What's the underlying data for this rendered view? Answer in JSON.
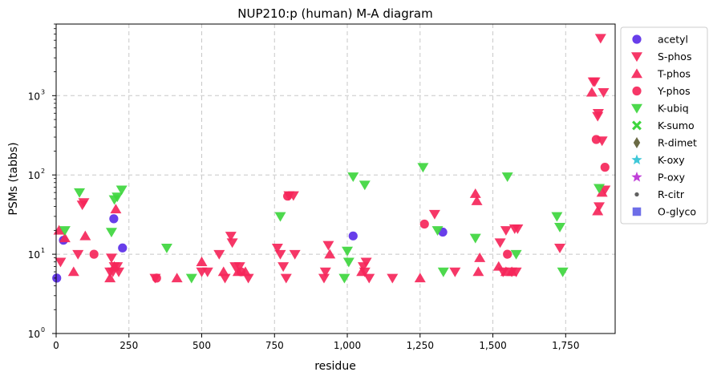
{
  "chart_data": {
    "type": "scatter",
    "title": "NUP210:p (human) M-A diagram",
    "xlabel": "residue",
    "ylabel": "PSMs (tabbs)",
    "xlim": [
      0,
      1920
    ],
    "ylim": [
      1,
      8000
    ],
    "yscale": "log",
    "grid": true,
    "legend_position": "outside-right",
    "x_ticks": [
      {
        "value": 0,
        "label": "0"
      },
      {
        "value": 250,
        "label": "250"
      },
      {
        "value": 500,
        "label": "500"
      },
      {
        "value": 750,
        "label": "750"
      },
      {
        "value": 1000,
        "label": "1,000"
      },
      {
        "value": 1250,
        "label": "1,250"
      },
      {
        "value": 1500,
        "label": "1,500"
      },
      {
        "value": 1750,
        "label": "1,750"
      }
    ],
    "y_ticks": [
      {
        "value": 1,
        "label": "10",
        "exp": "0"
      },
      {
        "value": 10,
        "label": "10",
        "exp": "1"
      },
      {
        "value": 100,
        "label": "10",
        "exp": "2"
      },
      {
        "value": 1000,
        "label": "10",
        "exp": "3"
      }
    ],
    "series": [
      {
        "name": "acetyl",
        "marker": "circle",
        "color": "#5b2ee8",
        "points": [
          [
            2,
            5
          ],
          [
            25,
            15
          ],
          [
            198,
            28
          ],
          [
            228,
            12
          ],
          [
            1020,
            17
          ],
          [
            1328,
            19
          ]
        ]
      },
      {
        "name": "S-phos",
        "marker": "triangle-down",
        "color": "#f5265a",
        "points": [
          [
            15,
            8
          ],
          [
            75,
            10
          ],
          [
            90,
            42
          ],
          [
            95,
            45
          ],
          [
            185,
            6
          ],
          [
            190,
            9
          ],
          [
            195,
            6
          ],
          [
            200,
            7
          ],
          [
            210,
            7
          ],
          [
            215,
            6
          ],
          [
            340,
            5
          ],
          [
            500,
            6
          ],
          [
            520,
            6
          ],
          [
            560,
            10
          ],
          [
            580,
            5
          ],
          [
            600,
            17
          ],
          [
            605,
            14
          ],
          [
            615,
            7
          ],
          [
            630,
            7
          ],
          [
            660,
            5
          ],
          [
            760,
            12
          ],
          [
            770,
            10
          ],
          [
            780,
            7
          ],
          [
            790,
            5
          ],
          [
            800,
            55
          ],
          [
            815,
            55
          ],
          [
            820,
            10
          ],
          [
            920,
            5
          ],
          [
            925,
            6
          ],
          [
            935,
            13
          ],
          [
            1055,
            7
          ],
          [
            1060,
            6
          ],
          [
            1065,
            8
          ],
          [
            1075,
            5
          ],
          [
            1155,
            5
          ],
          [
            1300,
            32
          ],
          [
            1370,
            6
          ],
          [
            1525,
            14
          ],
          [
            1535,
            6
          ],
          [
            1545,
            20
          ],
          [
            1565,
            6
          ],
          [
            1575,
            21
          ],
          [
            1580,
            6
          ],
          [
            1585,
            21
          ],
          [
            1730,
            12
          ],
          [
            1845,
            1500
          ],
          [
            1850,
            1500
          ],
          [
            1860,
            550
          ],
          [
            1862,
            600
          ],
          [
            1865,
            40
          ],
          [
            1870,
            5300
          ],
          [
            1875,
            270
          ],
          [
            1880,
            1100
          ],
          [
            1885,
            65
          ]
        ]
      },
      {
        "name": "T-phos",
        "marker": "triangle-up",
        "color": "#f5265a",
        "points": [
          [
            10,
            20
          ],
          [
            30,
            16
          ],
          [
            60,
            6
          ],
          [
            100,
            17
          ],
          [
            185,
            5
          ],
          [
            200,
            7
          ],
          [
            205,
            37
          ],
          [
            415,
            5
          ],
          [
            500,
            8
          ],
          [
            575,
            6
          ],
          [
            625,
            6
          ],
          [
            650,
            6
          ],
          [
            940,
            10
          ],
          [
            1050,
            6
          ],
          [
            1250,
            5
          ],
          [
            1440,
            58
          ],
          [
            1445,
            47
          ],
          [
            1450,
            6
          ],
          [
            1455,
            9
          ],
          [
            1520,
            7
          ],
          [
            1545,
            6
          ],
          [
            1565,
            6
          ],
          [
            1840,
            1100
          ],
          [
            1860,
            35
          ],
          [
            1875,
            60
          ]
        ]
      },
      {
        "name": "Y-phos",
        "marker": "circle",
        "color": "#f5265a",
        "points": [
          [
            130,
            10
          ],
          [
            345,
            5
          ],
          [
            635,
            6
          ],
          [
            795,
            54
          ],
          [
            1265,
            24
          ],
          [
            1550,
            10
          ],
          [
            1855,
            280
          ],
          [
            1885,
            125
          ]
        ]
      },
      {
        "name": "K-ubiq",
        "marker": "triangle-down",
        "color": "#3ed63e",
        "points": [
          [
            30,
            20
          ],
          [
            80,
            60
          ],
          [
            190,
            19
          ],
          [
            200,
            49
          ],
          [
            210,
            53
          ],
          [
            225,
            65
          ],
          [
            380,
            12
          ],
          [
            465,
            5
          ],
          [
            770,
            30
          ],
          [
            990,
            5
          ],
          [
            1000,
            11
          ],
          [
            1005,
            8
          ],
          [
            1020,
            95
          ],
          [
            1060,
            75
          ],
          [
            1260,
            125
          ],
          [
            1310,
            20
          ],
          [
            1330,
            6
          ],
          [
            1440,
            16
          ],
          [
            1550,
            95
          ],
          [
            1580,
            10
          ],
          [
            1720,
            30
          ],
          [
            1730,
            22
          ],
          [
            1740,
            6
          ],
          [
            1865,
            68
          ]
        ]
      },
      {
        "name": "K-sumo",
        "marker": "x",
        "color": "#3ed63e",
        "points": []
      },
      {
        "name": "R-dimet",
        "marker": "diamond",
        "color": "#6b6b45",
        "points": []
      },
      {
        "name": "K-oxy",
        "marker": "star",
        "color": "#40c8d8",
        "points": []
      },
      {
        "name": "P-oxy",
        "marker": "star",
        "color": "#c040d8",
        "points": []
      },
      {
        "name": "R-citr",
        "marker": "small-circle",
        "color": "#606060",
        "points": []
      },
      {
        "name": "O-glyco",
        "marker": "square",
        "color": "#6e6ee8",
        "points": []
      }
    ]
  }
}
